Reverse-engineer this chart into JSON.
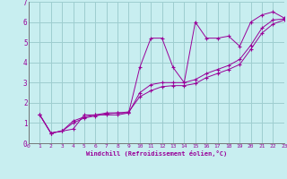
{
  "xlabel": "Windchill (Refroidissement éolien,°C)",
  "bg_color": "#c8eef0",
  "grid_color": "#9ecdd0",
  "line_color": "#990099",
  "xlim": [
    0,
    23
  ],
  "ylim": [
    0,
    7
  ],
  "xticks": [
    0,
    1,
    2,
    3,
    4,
    5,
    6,
    7,
    8,
    9,
    10,
    11,
    12,
    13,
    14,
    15,
    16,
    17,
    18,
    19,
    20,
    21,
    22,
    23
  ],
  "yticks": [
    0,
    1,
    2,
    3,
    4,
    5,
    6,
    7
  ],
  "series1_x": [
    1,
    2,
    3,
    4,
    5,
    6,
    7,
    8,
    9,
    10,
    11,
    12,
    13,
    14,
    15,
    16,
    17,
    18,
    19,
    20,
    21,
    22,
    23
  ],
  "series1_y": [
    1.4,
    0.5,
    0.6,
    0.7,
    1.4,
    1.4,
    1.4,
    1.4,
    1.5,
    3.75,
    5.2,
    5.2,
    3.75,
    3.0,
    6.0,
    5.2,
    5.2,
    5.3,
    4.8,
    6.0,
    6.35,
    6.5,
    6.2
  ],
  "series2_x": [
    1,
    2,
    3,
    4,
    5,
    6,
    7,
    8,
    9,
    10,
    11,
    12,
    13,
    14,
    15,
    16,
    17,
    18,
    19,
    20,
    21,
    22,
    23
  ],
  "series2_y": [
    1.4,
    0.5,
    0.6,
    1.1,
    1.3,
    1.4,
    1.5,
    1.5,
    1.5,
    2.5,
    2.9,
    3.0,
    3.0,
    3.0,
    3.15,
    3.45,
    3.65,
    3.85,
    4.15,
    4.85,
    5.7,
    6.1,
    6.15
  ],
  "series3_x": [
    1,
    2,
    3,
    4,
    5,
    6,
    7,
    8,
    9,
    10,
    11,
    12,
    13,
    14,
    15,
    16,
    17,
    18,
    19,
    20,
    21,
    22,
    23
  ],
  "series3_y": [
    1.4,
    0.5,
    0.6,
    1.0,
    1.25,
    1.35,
    1.45,
    1.5,
    1.55,
    2.3,
    2.6,
    2.8,
    2.85,
    2.85,
    2.95,
    3.25,
    3.45,
    3.65,
    3.9,
    4.65,
    5.45,
    5.9,
    6.1
  ]
}
